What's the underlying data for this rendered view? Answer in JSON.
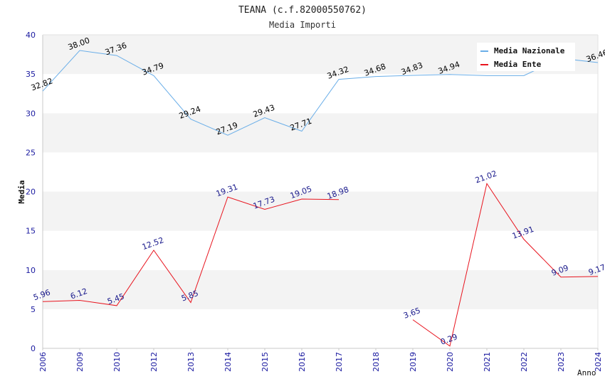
{
  "chart_data": {
    "type": "line",
    "title": "TEANA (c.f.82000550762)",
    "subtitle": "Media Importi",
    "xlabel": "Anno",
    "ylabel": "Media",
    "ylim": [
      0,
      40
    ],
    "yticks": [
      "0",
      "5",
      "10",
      "15",
      "20",
      "25",
      "30",
      "35",
      "40"
    ],
    "categories": [
      "2006",
      "2009",
      "2010",
      "2012",
      "2013",
      "2014",
      "2015",
      "2016",
      "2017",
      "2018",
      "2019",
      "2020",
      "2021",
      "2022",
      "2023",
      "2024"
    ],
    "series": [
      {
        "name": "Media Nazionale",
        "color": "#6aaee8",
        "label_color": "#000000",
        "values": [
          32.82,
          38.0,
          37.36,
          34.79,
          29.24,
          27.19,
          29.43,
          27.71,
          34.32,
          34.68,
          34.83,
          34.94,
          34.8,
          34.8,
          37.0,
          36.46
        ],
        "labels": [
          "32.82",
          "38.00",
          "37.36",
          "34.79",
          "29.24",
          "27.19",
          "29.43",
          "27.71",
          "34.32",
          "34.68",
          "34.83",
          "34.94",
          null,
          null,
          null,
          "36.46"
        ]
      },
      {
        "name": "Media Ente",
        "color": "#e8141e",
        "label_color": "#1a1a8c",
        "values": [
          5.96,
          6.12,
          5.45,
          12.52,
          5.85,
          19.31,
          17.73,
          19.05,
          18.98,
          null,
          3.65,
          0.29,
          21.02,
          13.91,
          9.09,
          9.17
        ],
        "labels": [
          "5.96",
          "6.12",
          "5.45",
          "12.52",
          "5.85",
          "19.31",
          "17.73",
          "19.05",
          "18.98",
          null,
          "3.65",
          "0.29",
          "21.02",
          "13.91",
          "9.09",
          "9.17"
        ]
      }
    ],
    "legend_position": "top-right",
    "grid": "horizontal alternating bands"
  }
}
